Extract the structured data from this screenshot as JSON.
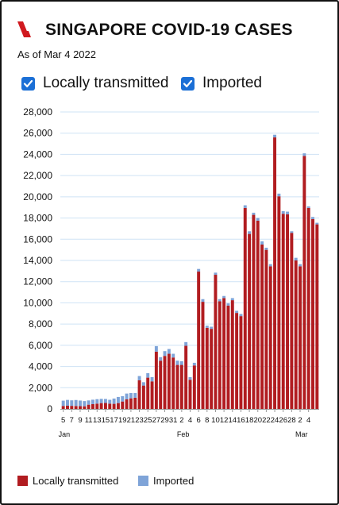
{
  "header": {
    "title": "SINGAPORE COVID-19 CASES",
    "subtitle": "As of Mar 4 2022",
    "logo_icon": "red-slash-logo-icon"
  },
  "toggles": [
    {
      "label": "Locally transmitted",
      "checked": true,
      "icon": "checkbox-checked-icon"
    },
    {
      "label": "Imported",
      "checked": true,
      "icon": "checkbox-checked-icon"
    }
  ],
  "legend": [
    {
      "label": "Locally transmitted",
      "color": "#b11c20"
    },
    {
      "label": "Imported",
      "color": "#7fa4d8"
    }
  ],
  "colors": {
    "accent": "#d0191f",
    "checkbox": "#1b6fd6",
    "gridline": "#cfe3f5"
  },
  "chart_data": {
    "type": "bar",
    "stacked": true,
    "title": "SINGAPORE COVID-19 CASES",
    "x_start_label": "Jan 5",
    "x_tick_labels": [
      "5",
      "7",
      "9",
      "11",
      "13",
      "15",
      "17",
      "19",
      "21",
      "23",
      "25",
      "27",
      "29",
      "31",
      "2",
      "4",
      "6",
      "8",
      "10",
      "12",
      "14",
      "16",
      "18",
      "20",
      "22",
      "24",
      "26",
      "28",
      "2",
      "4"
    ],
    "month_labels": [
      {
        "label": "Jan",
        "tick_index": 0
      },
      {
        "label": "Feb",
        "tick_index": 14
      },
      {
        "label": "Mar",
        "tick_index": 28
      }
    ],
    "ylim": [
      0,
      28000
    ],
    "yticks": [
      "0",
      "2,000",
      "4,000",
      "6,000",
      "8,000",
      "10,000",
      "12,000",
      "14,000",
      "16,000",
      "18,000",
      "20,000",
      "22,000",
      "24,000",
      "26,000",
      "28,000"
    ],
    "grid": true,
    "legend_position": "bottom",
    "series": [
      {
        "name": "Locally transmitted",
        "color": "#b11c20",
        "values": [
          280,
          300,
          290,
          280,
          260,
          250,
          400,
          450,
          500,
          550,
          560,
          500,
          480,
          550,
          700,
          900,
          1000,
          1050,
          2700,
          2200,
          2950,
          2600,
          5400,
          4550,
          5000,
          5200,
          4850,
          4150,
          4150,
          5950,
          2750,
          4100,
          12950,
          10100,
          7650,
          7550,
          12650,
          10150,
          10450,
          9750,
          10250,
          9050,
          8750,
          18950,
          16500,
          18300,
          17750,
          15500,
          15000,
          13450,
          25600,
          20050,
          18400,
          18350,
          16600,
          14000,
          13450,
          23850,
          18950,
          17900,
          17400
        ]
      },
      {
        "name": "Imported",
        "color": "#7fa4d8",
        "values": [
          500,
          550,
          520,
          560,
          530,
          490,
          400,
          420,
          420,
          400,
          380,
          360,
          500,
          580,
          500,
          550,
          500,
          450,
          400,
          320,
          420,
          400,
          520,
          330,
          450,
          450,
          350,
          400,
          350,
          350,
          250,
          250,
          250,
          250,
          200,
          200,
          200,
          200,
          200,
          200,
          200,
          200,
          200,
          250,
          250,
          200,
          250,
          300,
          200,
          200,
          250,
          250,
          250,
          250,
          150,
          250,
          200,
          250,
          150,
          200,
          150
        ]
      }
    ]
  }
}
